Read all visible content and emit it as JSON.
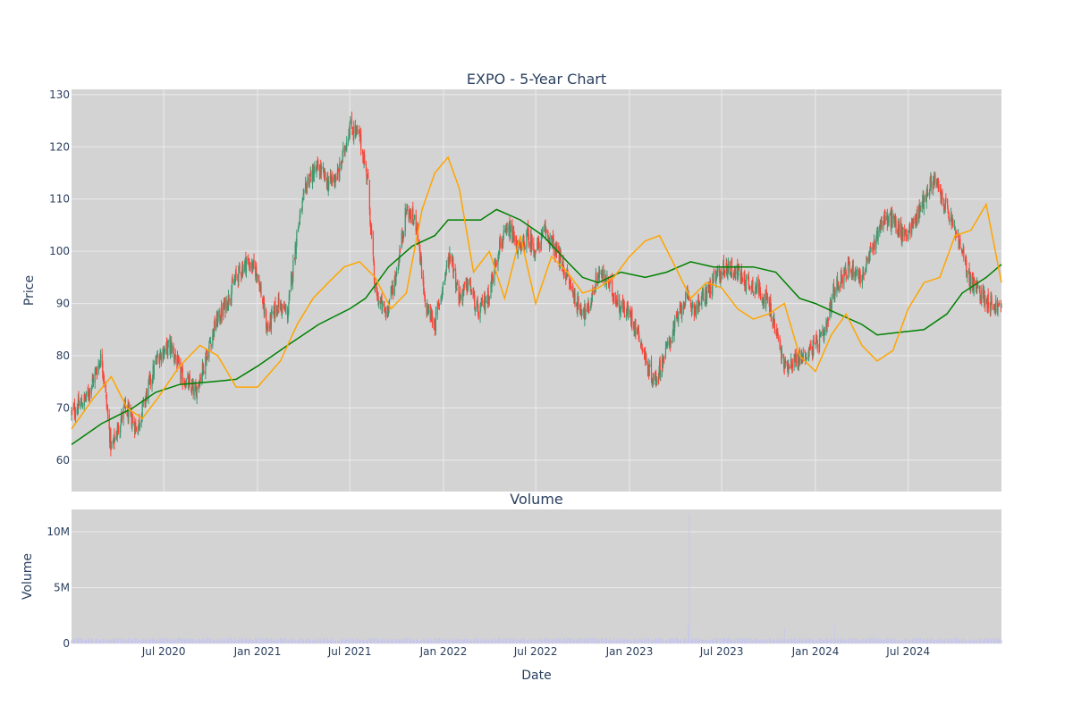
{
  "chart_data": [
    {
      "type": "candlestick",
      "title": "EXPO - 5-Year Chart",
      "ylabel": "Price",
      "ylim": [
        54,
        131
      ],
      "y_ticks": [
        60,
        70,
        80,
        90,
        100,
        110,
        120,
        130
      ],
      "x_range": [
        "2020-01-02",
        "2024-12-31"
      ],
      "x_ticks": [
        {
          "date": "2020-07-01",
          "label": "Jul 2020"
        },
        {
          "date": "2021-01-01",
          "label": "Jan 2021"
        },
        {
          "date": "2021-07-01",
          "label": "Jul 2021"
        },
        {
          "date": "2022-01-01",
          "label": "Jan 2022"
        },
        {
          "date": "2022-07-01",
          "label": "Jul 2022"
        },
        {
          "date": "2023-01-01",
          "label": "Jan 2023"
        },
        {
          "date": "2023-07-01",
          "label": "Jul 2023"
        },
        {
          "date": "2024-01-01",
          "label": "Jan 2024"
        },
        {
          "date": "2024-07-01",
          "label": "Jul 2024"
        }
      ],
      "grid": true,
      "colors": {
        "up": "#3d9970",
        "down": "#ff4136",
        "ma_short": "#ffa500",
        "ma_long": "#008000",
        "plot_bg": "#d3d3d3",
        "grid": "#ebebeb"
      },
      "series": [
        {
          "kind": "close",
          "x": [
            "2020-01-02",
            "2020-02-01",
            "2020-03-01",
            "2020-03-20",
            "2020-04-15",
            "2020-05-10",
            "2020-06-01",
            "2020-06-20",
            "2020-07-15",
            "2020-08-05",
            "2020-09-01",
            "2020-09-20",
            "2020-10-10",
            "2020-11-01",
            "2020-11-20",
            "2020-12-10",
            "2021-01-01",
            "2021-01-20",
            "2021-02-10",
            "2021-03-01",
            "2021-03-20",
            "2021-04-10",
            "2021-05-01",
            "2021-05-20",
            "2021-06-10",
            "2021-07-01",
            "2021-07-20",
            "2021-08-05",
            "2021-08-20",
            "2021-09-10",
            "2021-10-01",
            "2021-10-20",
            "2021-11-10",
            "2021-11-25",
            "2021-12-15",
            "2022-01-01",
            "2022-01-15",
            "2022-02-01",
            "2022-02-20",
            "2022-03-10",
            "2022-04-01",
            "2022-04-20",
            "2022-05-10",
            "2022-06-01",
            "2022-06-15",
            "2022-07-01",
            "2022-07-20",
            "2022-08-10",
            "2022-09-01",
            "2022-09-20",
            "2022-10-10",
            "2022-11-01",
            "2022-11-20",
            "2022-12-10",
            "2023-01-01",
            "2023-01-20",
            "2023-02-05",
            "2023-02-20",
            "2023-03-10",
            "2023-04-01",
            "2023-04-20",
            "2023-05-10",
            "2023-06-01",
            "2023-06-20",
            "2023-07-10",
            "2023-08-01",
            "2023-08-20",
            "2023-09-10",
            "2023-10-01",
            "2023-10-20",
            "2023-11-01",
            "2023-11-20",
            "2023-12-10",
            "2024-01-01",
            "2024-01-20",
            "2024-02-05",
            "2024-02-20",
            "2024-03-10",
            "2024-04-01",
            "2024-04-20",
            "2024-05-10",
            "2024-06-01",
            "2024-06-20",
            "2024-07-10",
            "2024-08-01",
            "2024-08-20",
            "2024-09-10",
            "2024-10-01",
            "2024-10-20",
            "2024-11-01",
            "2024-11-20",
            "2024-12-10",
            "2024-12-31"
          ],
          "values": [
            69,
            72,
            80,
            62,
            70,
            66,
            74,
            80,
            82,
            76,
            73,
            79,
            86,
            90,
            95,
            98,
            96,
            85,
            90,
            88,
            104,
            114,
            116,
            113,
            115,
            124,
            122,
            114,
            92,
            88,
            96,
            108,
            105,
            90,
            86,
            94,
            100,
            91,
            94,
            88,
            92,
            101,
            104,
            100,
            103,
            100,
            104,
            100,
            95,
            90,
            88,
            96,
            94,
            90,
            88,
            84,
            78,
            75,
            80,
            86,
            91,
            89,
            92,
            95,
            97,
            96,
            94,
            93,
            90,
            83,
            78,
            79,
            80,
            82,
            84,
            92,
            95,
            97,
            95,
            100,
            106,
            106,
            103,
            105,
            110,
            114,
            109,
            104,
            98,
            94,
            92,
            90,
            89
          ]
        },
        {
          "kind": "ma_short",
          "name": "",
          "x": [
            "2020-01-02",
            "2020-02-15",
            "2020-03-20",
            "2020-04-20",
            "2020-05-20",
            "2020-06-20",
            "2020-08-01",
            "2020-09-10",
            "2020-10-15",
            "2020-11-20",
            "2021-01-01",
            "2021-02-15",
            "2021-03-20",
            "2021-04-20",
            "2021-05-20",
            "2021-06-20",
            "2021-07-20",
            "2021-08-20",
            "2021-09-20",
            "2021-10-20",
            "2021-11-20",
            "2021-12-15",
            "2022-01-10",
            "2022-02-01",
            "2022-03-01",
            "2022-04-01",
            "2022-05-01",
            "2022-06-01",
            "2022-07-01",
            "2022-08-01",
            "2022-09-01",
            "2022-10-01",
            "2022-11-01",
            "2022-12-01",
            "2023-01-01",
            "2023-02-01",
            "2023-03-01",
            "2023-04-01",
            "2023-05-01",
            "2023-06-01",
            "2023-07-01",
            "2023-08-01",
            "2023-09-01",
            "2023-10-01",
            "2023-11-01",
            "2023-12-01",
            "2024-01-01",
            "2024-02-01",
            "2024-03-01",
            "2024-04-01",
            "2024-05-01",
            "2024-06-01",
            "2024-07-01",
            "2024-08-01",
            "2024-09-01",
            "2024-10-01",
            "2024-11-01",
            "2024-12-01",
            "2024-12-31"
          ],
          "values": [
            66,
            72,
            76,
            70,
            68,
            72,
            78,
            82,
            80,
            74,
            74,
            79,
            86,
            91,
            94,
            97,
            98,
            95,
            89,
            92,
            108,
            115,
            118,
            112,
            96,
            100,
            91,
            103,
            90,
            99,
            96,
            92,
            93,
            95,
            99,
            102,
            103,
            97,
            91,
            94,
            93,
            89,
            87,
            88,
            90,
            80,
            77,
            84,
            88,
            82,
            79,
            81,
            89,
            94,
            95,
            103,
            104,
            109,
            94
          ]
        },
        {
          "kind": "ma_long",
          "name": "",
          "x": [
            "2020-01-02",
            "2020-03-01",
            "2020-05-01",
            "2020-06-15",
            "2020-08-01",
            "2020-10-01",
            "2020-11-20",
            "2021-01-01",
            "2021-03-01",
            "2021-05-01",
            "2021-07-01",
            "2021-08-01",
            "2021-09-15",
            "2021-11-01",
            "2021-12-15",
            "2022-01-10",
            "2022-02-15",
            "2022-03-15",
            "2022-04-15",
            "2022-06-01",
            "2022-07-15",
            "2022-09-01",
            "2022-10-01",
            "2022-11-01",
            "2022-12-15",
            "2023-02-01",
            "2023-03-15",
            "2023-05-01",
            "2023-06-15",
            "2023-08-01",
            "2023-09-01",
            "2023-10-15",
            "2023-12-01",
            "2024-01-01",
            "2024-02-15",
            "2024-04-01",
            "2024-05-01",
            "2024-06-15",
            "2024-08-01",
            "2024-09-15",
            "2024-10-15",
            "2024-12-01",
            "2024-12-31"
          ],
          "values": [
            63,
            67,
            70,
            73,
            74.5,
            75,
            75.5,
            78,
            82,
            86,
            89,
            91,
            97,
            101,
            103,
            106,
            106,
            106,
            108,
            106,
            103,
            98,
            95,
            94,
            96,
            95,
            96,
            98,
            97,
            97,
            97,
            96,
            91,
            90,
            88,
            86,
            84,
            84.5,
            85,
            88,
            92,
            95,
            97.5
          ]
        }
      ]
    },
    {
      "type": "bar",
      "title": "Volume",
      "ylabel": "Volume",
      "xlabel": "Date",
      "ylim": [
        0,
        12000000
      ],
      "y_ticks": [
        {
          "value": 0,
          "label": "0"
        },
        {
          "value": 5000000,
          "label": "5M"
        },
        {
          "value": 10000000,
          "label": "10M"
        }
      ],
      "typical_volume": 350000,
      "spikes": [
        {
          "date": "2023-04-28",
          "value": 11600000
        },
        {
          "date": "2023-04-26",
          "value": 1600000
        },
        {
          "date": "2023-11-01",
          "value": 1400000
        },
        {
          "date": "2024-02-08",
          "value": 1700000
        },
        {
          "date": "2020-11-01",
          "value": 900000
        },
        {
          "date": "2024-04-25",
          "value": 800000
        }
      ],
      "bar_color": "#c7c7ea"
    }
  ]
}
